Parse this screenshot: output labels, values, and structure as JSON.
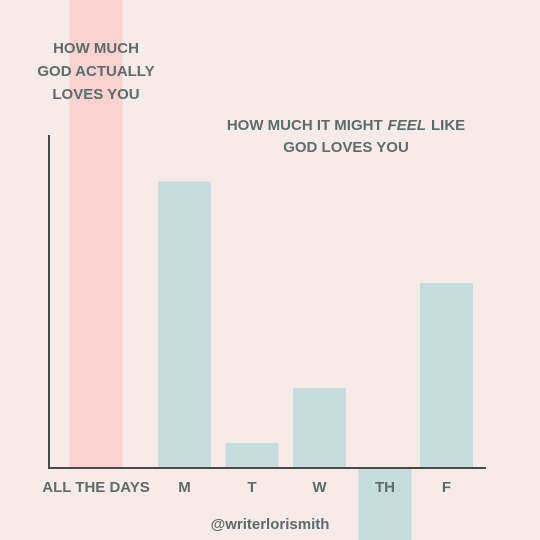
{
  "chart_data": {
    "type": "bar",
    "categories": [
      "ALL THE DAYS",
      "M",
      "T",
      "W",
      "TH",
      "F"
    ],
    "values": [
      140.5,
      86,
      7.5,
      24,
      -21.6,
      55.5
    ],
    "colors": [
      "#f9d3cf",
      "#c7dcdc",
      "#c7dcdc",
      "#c7dcdc",
      "#c7dcdc",
      "#c7dcdc"
    ],
    "ylim": [
      -21.6,
      140.5
    ],
    "annotations": [
      {
        "lines": [
          "HOW MUCH",
          "GOD ACTUALLY",
          "LOVES YOU"
        ]
      },
      {
        "lines": [
          [
            "HOW MUCH IT MIGHT",
            "FEEL",
            "LIKE"
          ],
          "GOD LOVES YOU"
        ]
      }
    ],
    "credit": "@writerlorismith"
  }
}
